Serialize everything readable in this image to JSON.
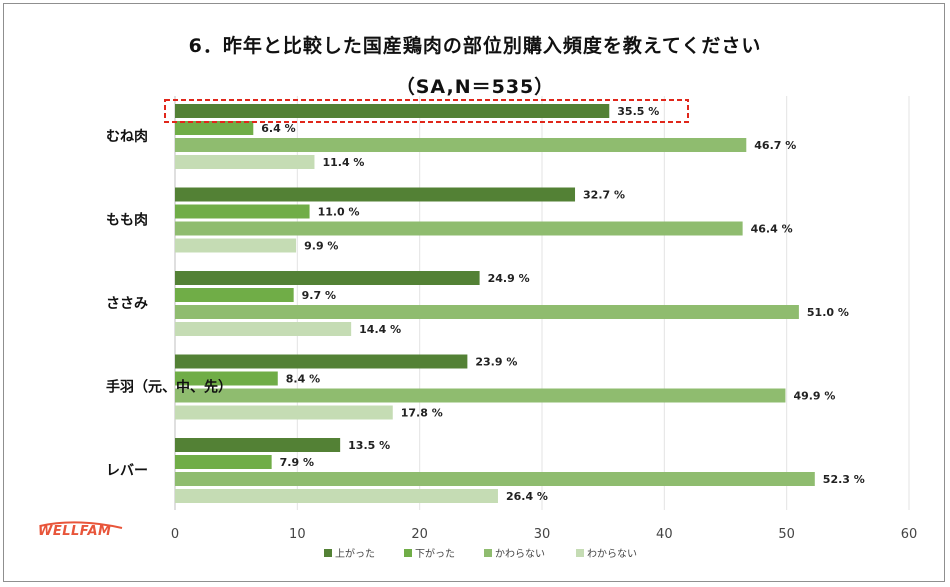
{
  "title": "6．昨年と比較した国産鶏肉の部位別購入頻度を教えてください",
  "subtitle": "（SA,N＝535）",
  "logo_text": "WELLFAM",
  "chart_data": {
    "type": "bar",
    "orientation": "horizontal",
    "categories": [
      "むね肉",
      "もも肉",
      "ささみ",
      "手羽（元、中、先）",
      "レバー"
    ],
    "series": [
      {
        "name": "上がった",
        "color": "#538135",
        "values": [
          35.5,
          32.7,
          24.9,
          23.9,
          13.5
        ]
      },
      {
        "name": "下がった",
        "color": "#70ad47",
        "values": [
          6.4,
          11.0,
          9.7,
          8.4,
          7.9
        ]
      },
      {
        "name": "かわらない",
        "color": "#8fbc6f",
        "values": [
          46.7,
          46.4,
          51.0,
          49.9,
          52.3
        ]
      },
      {
        "name": "わからない",
        "color": "#c5dcb4",
        "values": [
          11.4,
          9.9,
          14.4,
          17.8,
          26.4
        ]
      }
    ],
    "value_suffix": " %",
    "xlim": [
      0,
      60
    ],
    "xticks": [
      0,
      10,
      20,
      30,
      40,
      50,
      60
    ],
    "legend_position": "bottom",
    "highlight": {
      "category": "むね肉",
      "series": "上がった",
      "style": "red-dashed-box"
    }
  }
}
